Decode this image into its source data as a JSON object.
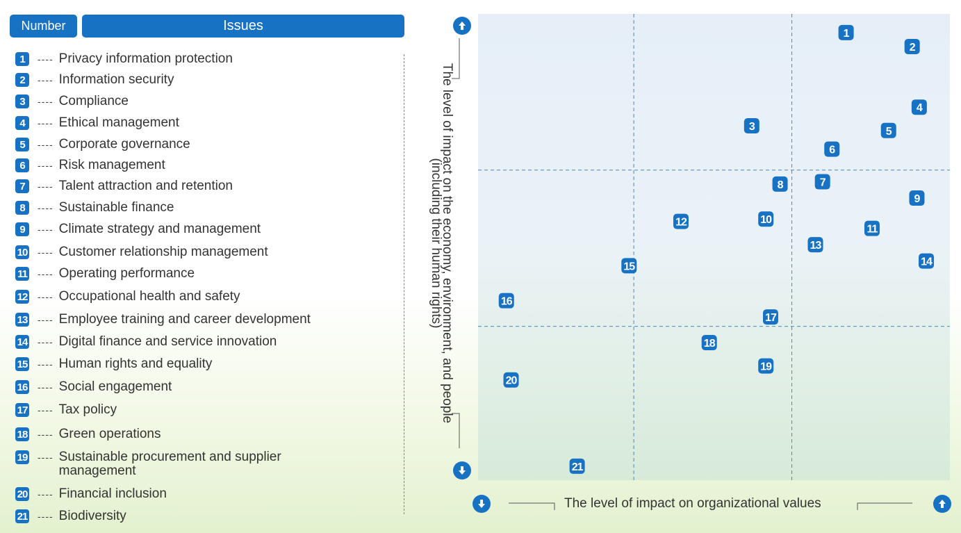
{
  "header": {
    "number_label": "Number",
    "issues_label": "Issues"
  },
  "issues": [
    {
      "num": "1",
      "label": "Privacy information protection"
    },
    {
      "num": "2",
      "label": "Information security"
    },
    {
      "num": "3",
      "label": "Compliance"
    },
    {
      "num": "4",
      "label": "Ethical management"
    },
    {
      "num": "5",
      "label": "Corporate governance"
    },
    {
      "num": "6",
      "label": "Risk management"
    },
    {
      "num": "7",
      "label": "Talent attraction and retention"
    },
    {
      "num": "8",
      "label": "Sustainable finance"
    },
    {
      "num": "9",
      "label": "Climate strategy and management"
    },
    {
      "num": "10",
      "label": "Customer relationship management"
    },
    {
      "num": "11",
      "label": "Operating performance"
    },
    {
      "num": "12",
      "label": "Occupational health and safety"
    },
    {
      "num": "13",
      "label": "Employee training and career development"
    },
    {
      "num": "14",
      "label": "Digital finance and service innovation"
    },
    {
      "num": "15",
      "label": "Human rights and equality"
    },
    {
      "num": "16",
      "label": "Social engagement"
    },
    {
      "num": "17",
      "label": "Tax policy"
    },
    {
      "num": "18",
      "label": "Green operations"
    },
    {
      "num": "19",
      "label": "Sustainable procurement and supplier management"
    },
    {
      "num": "20",
      "label": "Financial inclusion"
    },
    {
      "num": "21",
      "label": "Biodiversity"
    }
  ],
  "dash_text": "----",
  "colors": {
    "accent": "#1772c4",
    "text": "#333333",
    "grid": "#4f86b8"
  },
  "chart_data": {
    "type": "scatter",
    "xlabel": "The level of impact on organizational values",
    "ylabel": "The level of impact on the economy, environment, and people (including their human rights)",
    "xlim": [
      0,
      100
    ],
    "ylim": [
      0,
      100
    ],
    "quadrant_lines": {
      "x": [
        33,
        66.5
      ],
      "y": [
        33,
        66.5
      ]
    },
    "points": [
      {
        "label": "1",
        "x": 78,
        "y": 96
      },
      {
        "label": "2",
        "x": 92,
        "y": 93
      },
      {
        "label": "3",
        "x": 58,
        "y": 76
      },
      {
        "label": "4",
        "x": 93.5,
        "y": 80
      },
      {
        "label": "5",
        "x": 87,
        "y": 75
      },
      {
        "label": "6",
        "x": 75,
        "y": 71
      },
      {
        "label": "7",
        "x": 73,
        "y": 64
      },
      {
        "label": "8",
        "x": 64,
        "y": 63.5
      },
      {
        "label": "9",
        "x": 93,
        "y": 60.5
      },
      {
        "label": "10",
        "x": 61,
        "y": 56
      },
      {
        "label": "11",
        "x": 83.5,
        "y": 54
      },
      {
        "label": "12",
        "x": 43,
        "y": 55.5
      },
      {
        "label": "13",
        "x": 71.5,
        "y": 50.5
      },
      {
        "label": "14",
        "x": 95,
        "y": 47
      },
      {
        "label": "15",
        "x": 32,
        "y": 46
      },
      {
        "label": "16",
        "x": 6,
        "y": 38.5
      },
      {
        "label": "17",
        "x": 62,
        "y": 35
      },
      {
        "label": "18",
        "x": 49,
        "y": 29.5
      },
      {
        "label": "19",
        "x": 61,
        "y": 24.5
      },
      {
        "label": "20",
        "x": 7,
        "y": 21.5
      },
      {
        "label": "21",
        "x": 21,
        "y": 3
      }
    ]
  }
}
